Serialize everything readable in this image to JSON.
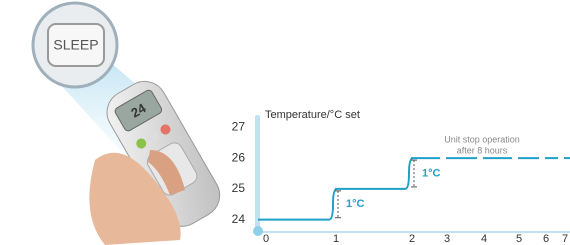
{
  "photo": {
    "button_label": "SLEEP",
    "display": "24"
  },
  "chart_data": {
    "type": "step",
    "y_label": "Temperature/°C set",
    "categories": [
      "0",
      "1",
      "2",
      "3",
      "4",
      "5",
      "6",
      "7"
    ],
    "values": [
      24,
      25,
      26,
      26,
      26,
      26,
      26,
      26
    ],
    "color": "#1fa0c8",
    "ylim": [
      23.6,
      27.4
    ],
    "yticks": [
      24,
      25,
      26,
      27
    ],
    "annotations": [
      "1°C",
      "1°C",
      "Unit stop operation",
      "after 8 hours"
    ]
  }
}
